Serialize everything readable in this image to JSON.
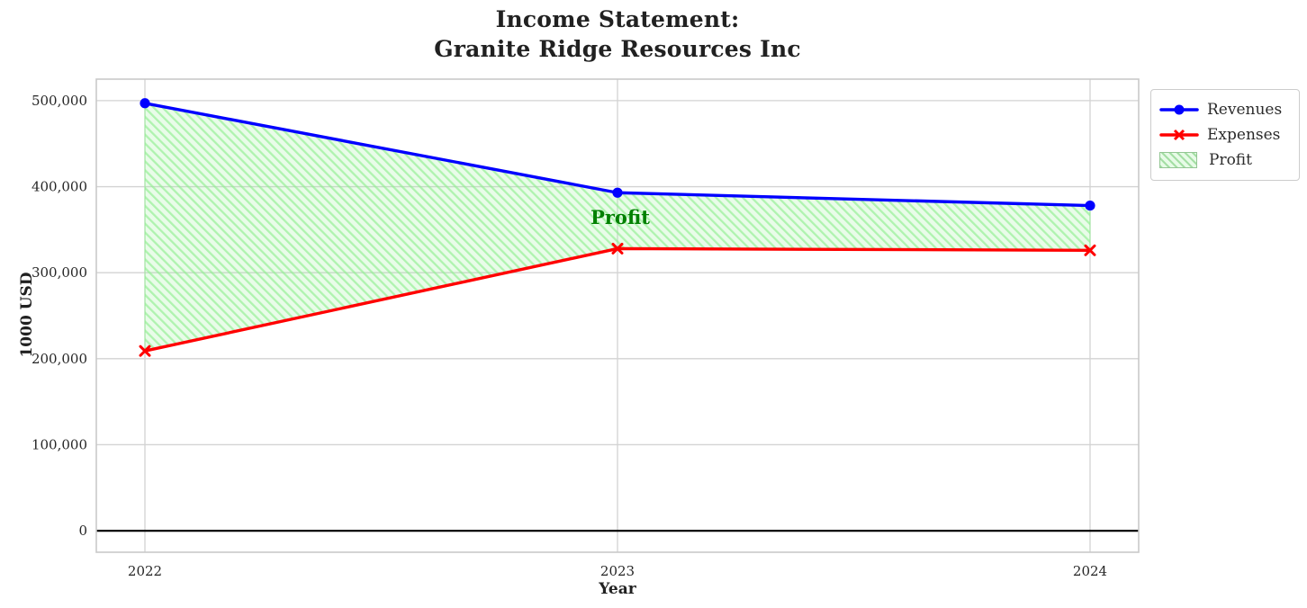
{
  "title_line1": "Income Statement:",
  "title_line2": "Granite Ridge Resources Inc",
  "chart_data": {
    "type": "line",
    "title": "Income Statement: Granite Ridge Resources Inc",
    "xlabel": "Year",
    "ylabel": "1000 USD",
    "categories": [
      "2022",
      "2023",
      "2024"
    ],
    "series": [
      {
        "name": "Revenues",
        "values": [
          497000,
          393000,
          378000
        ],
        "color": "#0000ff",
        "marker": "circle"
      },
      {
        "name": "Expenses",
        "values": [
          209000,
          328000,
          326000
        ],
        "color": "#ff0000",
        "marker": "x"
      }
    ],
    "area": {
      "name": "Profit",
      "between": [
        "Revenues",
        "Expenses"
      ],
      "values": [
        288000,
        65000,
        52000
      ],
      "fill_color": "#90ee90",
      "hatch": "/"
    },
    "annotation": {
      "text": "Profit",
      "color": "#008000",
      "x": "2023",
      "y": 360000
    },
    "yticks": [
      {
        "value": 0,
        "label": "0"
      },
      {
        "value": 100000,
        "label": "100,000"
      },
      {
        "value": 200000,
        "label": "200,000"
      },
      {
        "value": 300000,
        "label": "300,000"
      },
      {
        "value": 400000,
        "label": "400,000"
      },
      {
        "value": 500000,
        "label": "500,000"
      }
    ],
    "ylim": [
      -25000,
      525000
    ],
    "grid": true,
    "zero_line": true,
    "legend": {
      "position": "upper-right-outside",
      "entries": [
        "Revenues",
        "Expenses",
        "Profit"
      ]
    },
    "colors": {
      "grid": "#d3d3d3",
      "spine": "#c9c9c9",
      "tick_label": "#262626",
      "zero_line": "#000000"
    }
  }
}
